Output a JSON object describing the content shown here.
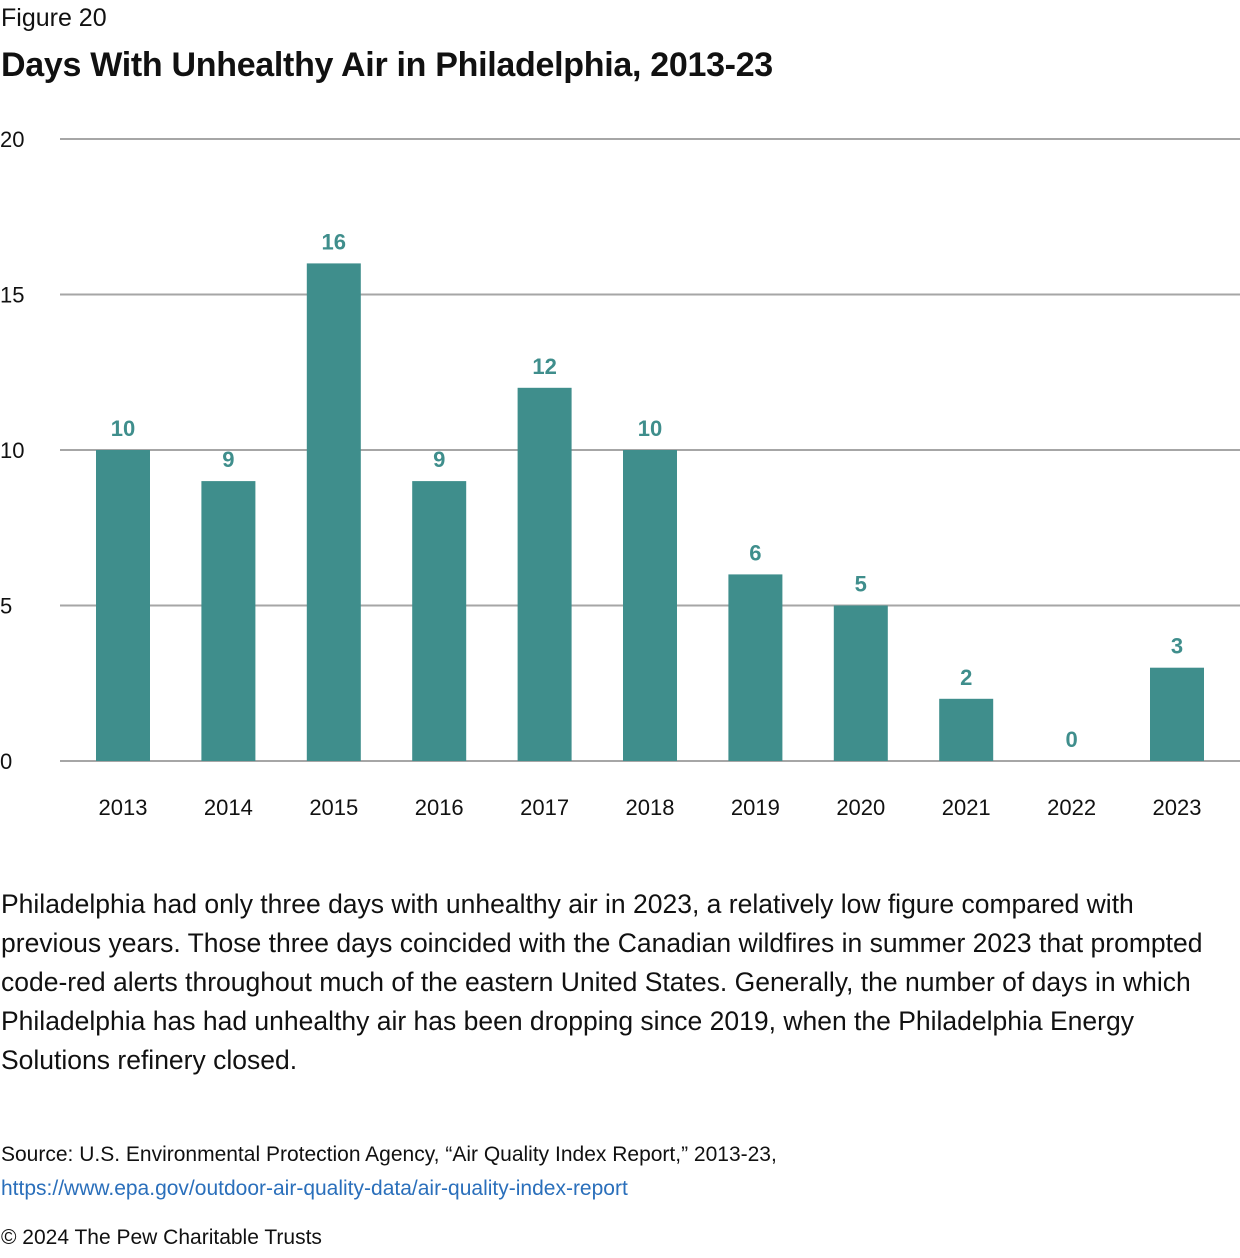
{
  "figure_label": "Figure 20",
  "colors": {
    "bar": "#3f8e8c",
    "data_label": "#3f8e8c",
    "gridline": "#a6a6a6",
    "link": "#2a6fbb"
  },
  "caption": "Philadelphia had only three days with unhealthy air in 2023, a relatively low figure compared with previous years. Those three days coincided with the Canadian wildfires in summer 2023 that prompted code-red alerts throughout much of the eastern United States. Generally, the number of days in which Philadelphia has had unhealthy air has been dropping since 2019, when the Philadelphia Energy Solutions refinery closed.",
  "source": {
    "text": "Source: U.S. Environmental Protection Agency, “Air Quality Index Report,” 2013-23,",
    "url": "https://www.epa.gov/outdoor-air-quality-data/air-quality-index-report"
  },
  "copyright": "© 2024 The Pew Charitable Trusts",
  "chart_data": {
    "type": "bar",
    "title": "Days With Unhealthy Air in Philadelphia, 2013-23",
    "xlabel": "",
    "ylabel": "",
    "categories": [
      "2013",
      "2014",
      "2015",
      "2016",
      "2017",
      "2018",
      "2019",
      "2020",
      "2021",
      "2022",
      "2023"
    ],
    "values": [
      10,
      9,
      16,
      9,
      12,
      10,
      6,
      5,
      2,
      0,
      3
    ],
    "data_labels": [
      "10",
      "9",
      "16",
      "9",
      "12",
      "10",
      "6",
      "5",
      "2",
      "0",
      "3"
    ],
    "ylim": [
      0,
      20
    ],
    "yticks": [
      0,
      5,
      10,
      15,
      20
    ],
    "ytick_labels": [
      "0",
      "5",
      "10",
      "15",
      "20"
    ],
    "grid": true,
    "legend": "none"
  }
}
